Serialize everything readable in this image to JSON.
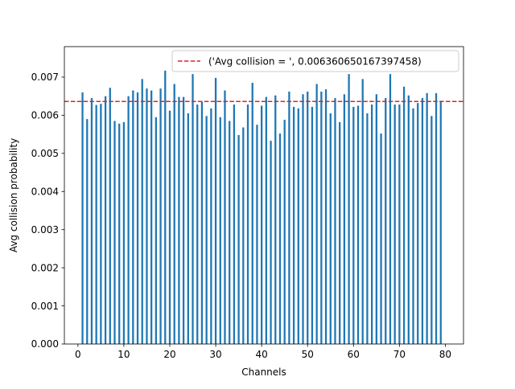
{
  "chart_data": {
    "type": "bar",
    "title": "",
    "xlabel": "Channels",
    "ylabel": "Avg collision probability",
    "xlim": [
      -2.95,
      83.95
    ],
    "ylim": [
      0,
      0.0078
    ],
    "x_ticks": [
      0,
      10,
      20,
      30,
      40,
      50,
      60,
      70,
      80
    ],
    "x_tick_labels": [
      "0",
      "10",
      "20",
      "30",
      "40",
      "50",
      "60",
      "70",
      "80"
    ],
    "y_ticks": [
      0,
      0.001,
      0.002,
      0.003,
      0.004,
      0.005,
      0.006,
      0.007
    ],
    "y_tick_labels": [
      "0.000",
      "0.001",
      "0.002",
      "0.003",
      "0.004",
      "0.005",
      "0.006",
      "0.007"
    ],
    "bar_width": 0.4,
    "colors": {
      "bars": "#1f77b4",
      "avg_line": "#d62728"
    },
    "series": [
      {
        "name": "collision probability",
        "x": [
          1,
          2,
          3,
          4,
          5,
          6,
          7,
          8,
          9,
          10,
          11,
          12,
          13,
          14,
          15,
          16,
          17,
          18,
          19,
          20,
          21,
          22,
          23,
          24,
          25,
          26,
          27,
          28,
          29,
          30,
          31,
          32,
          33,
          34,
          35,
          36,
          37,
          38,
          39,
          40,
          41,
          42,
          43,
          44,
          45,
          46,
          47,
          48,
          49,
          50,
          51,
          52,
          53,
          54,
          55,
          56,
          57,
          58,
          59,
          60,
          61,
          62,
          63,
          64,
          65,
          66,
          67,
          68,
          69,
          70,
          71,
          72,
          73,
          74,
          75,
          76,
          77,
          78,
          79
        ],
        "values": [
          0.0066,
          0.0059,
          0.00645,
          0.00627,
          0.0063,
          0.0065,
          0.00672,
          0.00585,
          0.00578,
          0.00582,
          0.0065,
          0.00665,
          0.0066,
          0.00695,
          0.0067,
          0.00665,
          0.00595,
          0.0067,
          0.00717,
          0.00612,
          0.00682,
          0.00648,
          0.00648,
          0.00605,
          0.00708,
          0.00628,
          0.00635,
          0.00598,
          0.00618,
          0.00698,
          0.00595,
          0.00665,
          0.00585,
          0.00628,
          0.00548,
          0.00568,
          0.00628,
          0.00685,
          0.00575,
          0.00625,
          0.00648,
          0.00533,
          0.00652,
          0.00552,
          0.00588,
          0.00662,
          0.00622,
          0.00618,
          0.00655,
          0.00662,
          0.00622,
          0.00682,
          0.00662,
          0.00668,
          0.00605,
          0.00645,
          0.00582,
          0.00655,
          0.00708,
          0.00622,
          0.00625,
          0.00695,
          0.00605,
          0.00628,
          0.00655,
          0.00552,
          0.00645,
          0.00708,
          0.00628,
          0.00628,
          0.00675,
          0.00652,
          0.00618,
          0.00632,
          0.00645,
          0.00658,
          0.00598,
          0.00658,
          0.00638
        ]
      }
    ],
    "reference_line": {
      "value": 0.006360650167397458,
      "style": "dashed"
    },
    "legend": {
      "position": "top-right",
      "label": "('Avg collision = ', 0.006360650167397458)"
    }
  }
}
